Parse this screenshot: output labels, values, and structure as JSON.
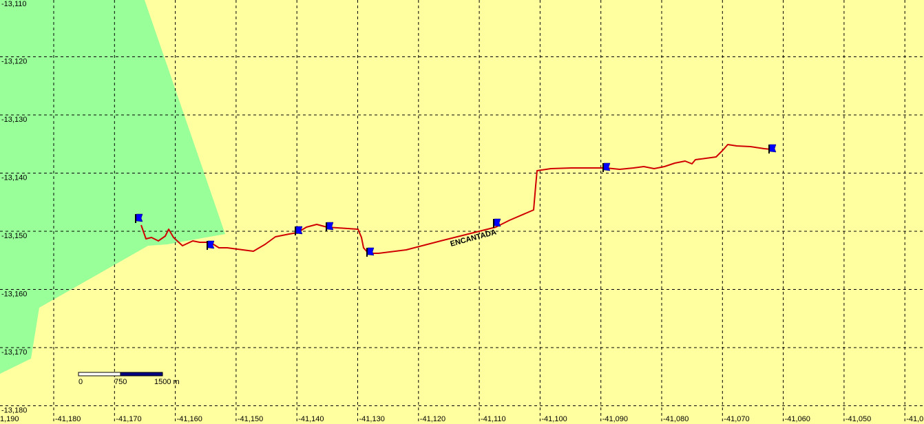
{
  "map": {
    "latitude_labels": [
      "-13,110",
      "-13,120",
      "-13,130",
      "-13,140",
      "-13,150",
      "-13,160",
      "-13,170",
      "-13,180"
    ],
    "longitude_labels": [
      "1,190",
      "-41,180",
      "-41,170",
      "-41,160",
      "-41,150",
      "-41,140",
      "-41,130",
      "-41,120",
      "-41,110",
      "-41,100",
      "-41,090",
      "-41,080",
      "-41,070",
      "-41,060",
      "-41,050",
      "-41,0"
    ],
    "track_label": "ENCANTADA",
    "scale_bar": {
      "labels": [
        "0",
        "750",
        "1500 m"
      ]
    }
  }
}
